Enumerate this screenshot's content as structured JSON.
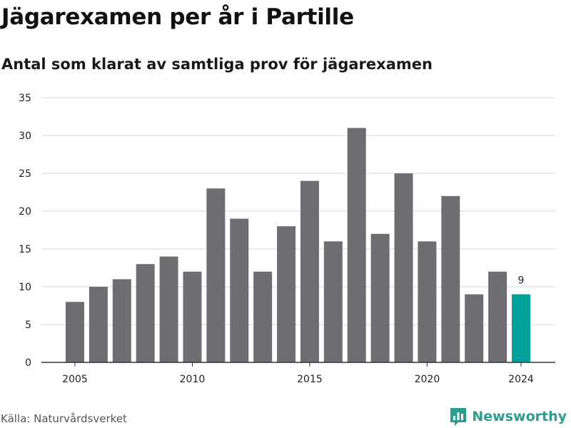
{
  "title": "Jägarexamen per år i Partille",
  "subtitle": "Antal som klarat av samtliga prov för jägarexamen",
  "source": "Källa: Naturvårdsverket",
  "brand": {
    "name": "Newsworthy",
    "icon": "bar-chart-logo-icon",
    "color": "#2a9d8f"
  },
  "colors": {
    "bar": "#6e6d72",
    "highlight": "#00a19a",
    "grid": "#d9d9d9",
    "axis": "#333333"
  },
  "chart_data": {
    "type": "bar",
    "title": "Jägarexamen per år i Partille",
    "subtitle": "Antal som klarat av samtliga prov för jägarexamen",
    "xlabel": "",
    "ylabel": "",
    "categories": [
      2005,
      2006,
      2007,
      2008,
      2009,
      2010,
      2011,
      2012,
      2013,
      2014,
      2015,
      2016,
      2017,
      2018,
      2019,
      2020,
      2021,
      2022,
      2023,
      2024
    ],
    "values": [
      8,
      10,
      11,
      13,
      14,
      12,
      23,
      19,
      12,
      18,
      24,
      16,
      31,
      17,
      25,
      16,
      22,
      9,
      12,
      9
    ],
    "ylim": [
      0,
      35
    ],
    "yticks": [
      0,
      5,
      10,
      15,
      20,
      25,
      30,
      35
    ],
    "xticks": [
      2005,
      2010,
      2015,
      2020,
      2024
    ],
    "highlight_category": 2024,
    "annotations": [
      {
        "x": 2024,
        "text": "9"
      }
    ],
    "grid": true,
    "legend": "none"
  }
}
